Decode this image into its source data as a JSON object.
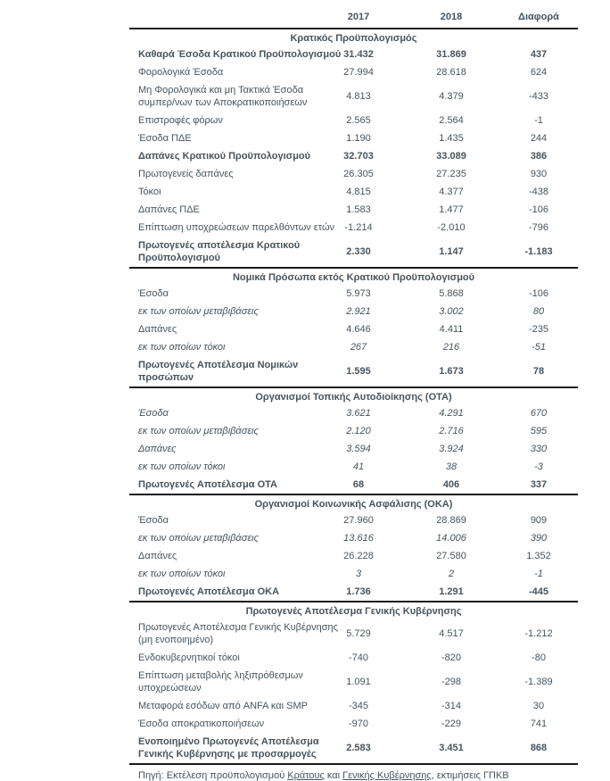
{
  "page": {
    "background": "#ffffff",
    "text_color": "#46545e",
    "rule_color": "#1b1b1b"
  },
  "header": {
    "columns": [
      "2017",
      "2018",
      "Διαφορά"
    ]
  },
  "sections": [
    {
      "title": "Κρατικός Προϋπολογισμός",
      "rows": [
        {
          "label": "Καθαρά Έσοδα Κρατικού Προϋπολογισμού",
          "values": [
            "31.432",
            "31.869",
            "437"
          ],
          "style": "bold"
        },
        {
          "label": "Φορολογικά Έσοδα",
          "values": [
            "27.994",
            "28.618",
            "624"
          ],
          "style": "normal"
        },
        {
          "label": "Μη Φορολογικά και μη Τακτικά Έσοδα",
          "label2": "συμπερ/νων των Αποκρατικοποιήσεων",
          "values": [
            "4.813",
            "4.379",
            "-433"
          ],
          "style": "normal"
        },
        {
          "label": "Επιστροφές φόρων",
          "values": [
            "2.565",
            "2.564",
            "-1"
          ],
          "style": "normal"
        },
        {
          "label": "Έσοδα ΠΔΕ",
          "values": [
            "1.190",
            "1.435",
            "244"
          ],
          "style": "normal"
        },
        {
          "label": "Δαπάνες Κρατικού Προϋπολογισμού",
          "values": [
            "32.703",
            "33.089",
            "386"
          ],
          "style": "bold"
        },
        {
          "label": "Πρωτογενείς δαπάνες",
          "values": [
            "26.305",
            "27.235",
            "930"
          ],
          "style": "normal"
        },
        {
          "label": "Τόκοι",
          "values": [
            "4.815",
            "4.377",
            "-438"
          ],
          "style": "normal"
        },
        {
          "label": "Δαπάνες ΠΔΕ",
          "values": [
            "1.583",
            "1.477",
            "-106"
          ],
          "style": "normal"
        },
        {
          "label": "Επίπτωση υποχρεώσεων παρελθόντων ετών",
          "values": [
            "-1.214",
            "-2.010",
            "-796"
          ],
          "style": "normal"
        },
        {
          "label": "Πρωτογενές αποτέλεσμα Κρατικού",
          "label2": "Προϋπολογισμού",
          "values": [
            "2.330",
            "1.147",
            "-1.183"
          ],
          "style": "bold"
        }
      ]
    },
    {
      "title": "Νομικά Πρόσωπα εκτός Κρατικού Προϋπολογισμού",
      "rows": [
        {
          "label": "Έσοδα",
          "values": [
            "5.973",
            "5.868",
            "-106"
          ],
          "style": "normal"
        },
        {
          "label": "εκ των οποίων μεταβιβάσεις",
          "values": [
            "2.921",
            "3.002",
            "80"
          ],
          "style": "italic"
        },
        {
          "label": "Δαπάνες",
          "values": [
            "4.646",
            "4.411",
            "-235"
          ],
          "style": "normal"
        },
        {
          "label": "εκ των οποίων τόκοι",
          "values": [
            "267",
            "216",
            "-51"
          ],
          "style": "italic"
        },
        {
          "label": "Πρωτογενές Αποτέλεσμα Νομικών",
          "label2": "προσώπων",
          "values": [
            "1.595",
            "1.673",
            "78"
          ],
          "style": "bold"
        }
      ]
    },
    {
      "title": "Οργανισμοί Τοπικής Αυτοδιοίκησης (ΟΤΑ)",
      "rows": [
        {
          "label": "Έσοδα",
          "values": [
            "3.621",
            "4.291",
            "670"
          ],
          "style": "italic"
        },
        {
          "label": "εκ των οποίων μεταβιβάσεις",
          "values": [
            "2.120",
            "2.716",
            "595"
          ],
          "style": "italic"
        },
        {
          "label": "Δαπάνες",
          "values": [
            "3.594",
            "3.924",
            "330"
          ],
          "style": "italic"
        },
        {
          "label": "εκ των οποίων τόκοι",
          "values": [
            "41",
            "38",
            "-3"
          ],
          "style": "italic"
        },
        {
          "label": "Πρωτογενές Αποτέλεσμα ΟΤΑ",
          "values": [
            "68",
            "406",
            "337"
          ],
          "style": "bold"
        }
      ]
    },
    {
      "title": "Οργανισμοί Κοινωνικής Ασφάλισης (ΟΚΑ)",
      "rows": [
        {
          "label": "Έσοδα",
          "values": [
            "27.960",
            "28.869",
            "909"
          ],
          "style": "normal"
        },
        {
          "label": "εκ των οποίων μεταβιβάσεις",
          "values": [
            "13.616",
            "14.006",
            "390"
          ],
          "style": "italic"
        },
        {
          "label": "Δαπάνες",
          "values": [
            "26.228",
            "27.580",
            "1.352"
          ],
          "style": "normal"
        },
        {
          "label": "εκ των οποίων τόκοι",
          "values": [
            "3",
            "2",
            "-1"
          ],
          "style": "italic"
        },
        {
          "label": "Πρωτογενές Αποτέλεσμα ΟΚΑ",
          "values": [
            "1.736",
            "1.291",
            "-445"
          ],
          "style": "bold"
        }
      ]
    },
    {
      "title": "Πρωτογενές Αποτέλεσμα Γενικής Κυβέρνησης",
      "rows": [
        {
          "label": "Πρωτογενές Αποτέλεσμα Γενικής Κυβέρνησης",
          "label2": "(μη ενοποιημένο)",
          "values": [
            "5.729",
            "4.517",
            "-1.212"
          ],
          "style": "normal"
        },
        {
          "label": "Ενδοκυβερνητικοί τόκοι",
          "values": [
            "-740",
            "-820",
            "-80"
          ],
          "style": "normal"
        },
        {
          "label": "Επίπτωση μεταβολής ληξιπρόθεσμων",
          "label2": "υποχρεώσεων",
          "values": [
            "1.091",
            "-298",
            "-1.389"
          ],
          "style": "normal"
        },
        {
          "label": "Μεταφορά εσόδων από ANFA και SMP",
          "values": [
            "-345",
            "-314",
            "30"
          ],
          "style": "normal"
        },
        {
          "label": "Έσοδα αποκρατικοποιήσεων",
          "values": [
            "-970",
            "-229",
            "741"
          ],
          "style": "normal"
        },
        {
          "label": "Ενοποιημένο Πρωτογενές Αποτέλεσμα",
          "label2": "Γενικής Κυβέρνησης με προσαρμογές",
          "values": [
            "2.583",
            "3.451",
            "868"
          ],
          "style": "bold"
        }
      ]
    }
  ],
  "footer": {
    "prefix": "Πηγή: Εκτέλεση προϋπολογισμού ",
    "link_state": "Κράτους",
    "middle": " και ",
    "link_gov": "Γενικής Κυβέρνησης",
    "suffix": ", εκτιμήσεις ΓΠΚΒ"
  }
}
